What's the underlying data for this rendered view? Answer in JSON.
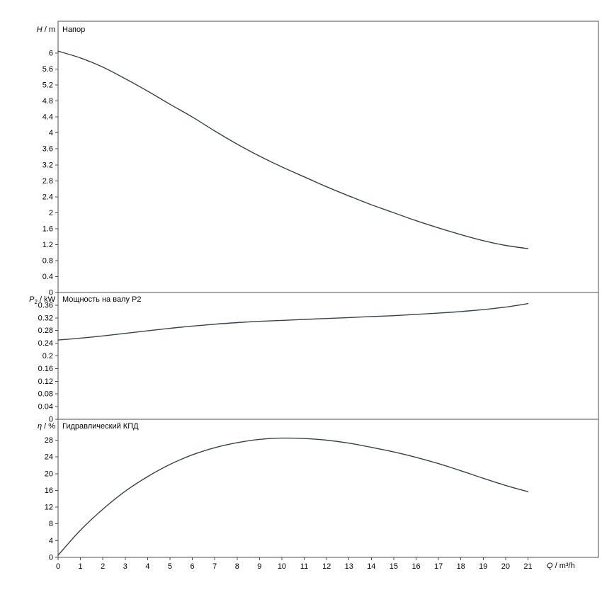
{
  "page": {
    "background": "#ffffff"
  },
  "chart_data": {
    "type": "line",
    "xlabel": {
      "var": "Q",
      "unit": " / m³/h"
    },
    "xticks": [
      "0",
      "1",
      "2",
      "3",
      "4",
      "5",
      "6",
      "7",
      "8",
      "9",
      "10",
      "11",
      "12",
      "13",
      "14",
      "15",
      "16",
      "17",
      "18",
      "19",
      "20",
      "21"
    ],
    "xmax": 24.15,
    "line_color": "#3a4247",
    "axis_color": "#4d4d4d",
    "panels": [
      {
        "id": "head",
        "title": "Напор",
        "ylabel": {
          "var": "H",
          "sub": "",
          "unit": " / m"
        },
        "yticks": [
          "0",
          "0.4",
          "0.8",
          "1.2",
          "1.6",
          "2",
          "2.4",
          "2.8",
          "3.2",
          "3.6",
          "4",
          "4.4",
          "4.8",
          "5.2",
          "5.6",
          "6"
        ],
        "ymax": 6.8,
        "x": [
          0,
          1,
          2,
          3,
          4,
          5,
          6,
          7,
          8,
          9,
          10,
          11,
          12,
          13,
          14,
          15,
          16,
          17,
          18,
          19,
          20,
          21
        ],
        "values": [
          6.05,
          5.88,
          5.65,
          5.36,
          5.05,
          4.72,
          4.4,
          4.05,
          3.72,
          3.42,
          3.15,
          2.9,
          2.65,
          2.42,
          2.2,
          2.0,
          1.8,
          1.62,
          1.45,
          1.3,
          1.18,
          1.1
        ]
      },
      {
        "id": "power",
        "title": "Мощность на валу P2",
        "ylabel": {
          "var": "P",
          "sub": "2",
          "unit": " / kW"
        },
        "yticks": [
          "0",
          "0.04",
          "0.08",
          "0.12",
          "0.16",
          "0.2",
          "0.24",
          "0.28",
          "0.32",
          "0.36"
        ],
        "ymax": 0.4,
        "x": [
          0,
          1,
          2,
          3,
          4,
          5,
          6,
          7,
          8,
          9,
          10,
          11,
          12,
          13,
          14,
          15,
          16,
          17,
          18,
          19,
          20,
          21
        ],
        "values": [
          0.25,
          0.256,
          0.263,
          0.271,
          0.279,
          0.287,
          0.294,
          0.3,
          0.305,
          0.309,
          0.312,
          0.315,
          0.318,
          0.321,
          0.324,
          0.327,
          0.331,
          0.335,
          0.34,
          0.346,
          0.354,
          0.365
        ]
      },
      {
        "id": "efficiency",
        "title": "Гидравлический КПД",
        "ylabel": {
          "var": "η",
          "sub": "",
          "unit": " / %"
        },
        "yticks": [
          "0",
          "4",
          "8",
          "12",
          "16",
          "20",
          "24",
          "28"
        ],
        "ymax": 33,
        "x": [
          0,
          1,
          2,
          3,
          4,
          5,
          6,
          7,
          8,
          9,
          10,
          11,
          12,
          13,
          14,
          15,
          16,
          17,
          18,
          19,
          20,
          21
        ],
        "values": [
          0.5,
          6.5,
          11.5,
          15.8,
          19.3,
          22.2,
          24.5,
          26.2,
          27.4,
          28.2,
          28.5,
          28.4,
          28.0,
          27.3,
          26.3,
          25.2,
          23.9,
          22.4,
          20.7,
          18.9,
          17.2,
          15.7
        ]
      }
    ]
  }
}
